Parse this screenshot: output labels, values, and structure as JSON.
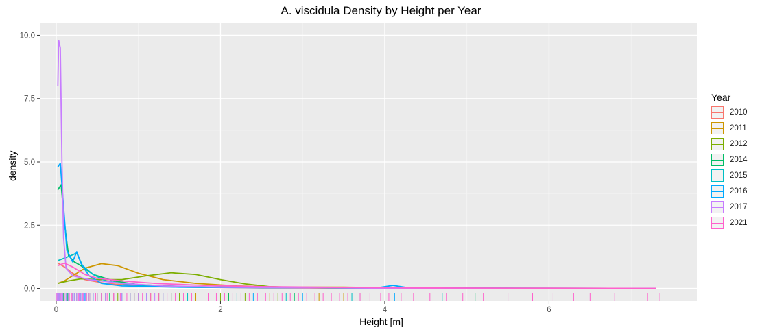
{
  "chart_data": {
    "type": "line",
    "title": "A. viscidula Density by Height per Year",
    "xlabel": "Height [m]",
    "ylabel": "density",
    "xlim": [
      -0.2,
      7.8
    ],
    "ylim": [
      -0.5,
      10.5
    ],
    "x_ticks": [
      0,
      2,
      4,
      6
    ],
    "y_ticks": [
      0.0,
      2.5,
      5.0,
      7.5,
      10.0
    ],
    "y_tick_labels": [
      "0.0",
      "2.5",
      "5.0",
      "7.5",
      "10.0"
    ],
    "grid": true,
    "legend": {
      "title": "Year",
      "placement": "right"
    },
    "series": [
      {
        "name": "2010",
        "color": "#F8766D",
        "points": [
          [
            0.02,
            1.0
          ],
          [
            0.1,
            0.85
          ],
          [
            0.2,
            0.6
          ],
          [
            0.35,
            0.35
          ],
          [
            0.6,
            0.2
          ],
          [
            1.0,
            0.1
          ],
          [
            1.6,
            0.05
          ],
          [
            2.5,
            0.02
          ],
          [
            4.0,
            0.01
          ],
          [
            7.3,
            0.0
          ]
        ]
      },
      {
        "name": "2011",
        "color": "#CD9600",
        "points": [
          [
            0.02,
            0.2
          ],
          [
            0.1,
            0.3
          ],
          [
            0.2,
            0.5
          ],
          [
            0.35,
            0.8
          ],
          [
            0.55,
            0.98
          ],
          [
            0.75,
            0.9
          ],
          [
            1.0,
            0.6
          ],
          [
            1.3,
            0.35
          ],
          [
            1.7,
            0.2
          ],
          [
            2.2,
            0.1
          ],
          [
            2.8,
            0.05
          ],
          [
            3.5,
            0.05
          ],
          [
            4.0,
            0.03
          ],
          [
            5.0,
            0.01
          ],
          [
            7.3,
            0.0
          ]
        ]
      },
      {
        "name": "2012",
        "color": "#7CAE00",
        "points": [
          [
            0.02,
            0.2
          ],
          [
            0.15,
            0.3
          ],
          [
            0.3,
            0.38
          ],
          [
            0.5,
            0.35
          ],
          [
            0.8,
            0.35
          ],
          [
            1.1,
            0.5
          ],
          [
            1.4,
            0.62
          ],
          [
            1.7,
            0.55
          ],
          [
            2.0,
            0.35
          ],
          [
            2.3,
            0.18
          ],
          [
            2.6,
            0.07
          ],
          [
            3.0,
            0.03
          ],
          [
            3.5,
            0.01
          ],
          [
            7.3,
            0.0
          ]
        ]
      },
      {
        "name": "2014",
        "color": "#00BE67",
        "points": [
          [
            0.02,
            3.9
          ],
          [
            0.06,
            4.1
          ],
          [
            0.1,
            2.6
          ],
          [
            0.15,
            1.3
          ],
          [
            0.22,
            1.05
          ],
          [
            0.3,
            0.9
          ],
          [
            0.45,
            0.55
          ],
          [
            0.7,
            0.3
          ],
          [
            1.0,
            0.15
          ],
          [
            1.5,
            0.08
          ],
          [
            2.0,
            0.05
          ],
          [
            3.0,
            0.03
          ],
          [
            4.0,
            0.01
          ],
          [
            7.3,
            0.0
          ]
        ]
      },
      {
        "name": "2015",
        "color": "#00BFC4",
        "points": [
          [
            0.02,
            1.1
          ],
          [
            0.1,
            1.2
          ],
          [
            0.18,
            1.3
          ],
          [
            0.25,
            1.4
          ],
          [
            0.32,
            0.9
          ],
          [
            0.45,
            0.55
          ],
          [
            0.6,
            0.3
          ],
          [
            0.9,
            0.15
          ],
          [
            1.3,
            0.08
          ],
          [
            2.0,
            0.05
          ],
          [
            3.0,
            0.03
          ],
          [
            4.0,
            0.01
          ],
          [
            7.3,
            0.0
          ]
        ]
      },
      {
        "name": "2016",
        "color": "#00A9FF",
        "points": [
          [
            0.02,
            4.8
          ],
          [
            0.05,
            4.95
          ],
          [
            0.09,
            3.2
          ],
          [
            0.13,
            1.5
          ],
          [
            0.2,
            1.05
          ],
          [
            0.25,
            1.45
          ],
          [
            0.3,
            1.0
          ],
          [
            0.4,
            0.5
          ],
          [
            0.55,
            0.2
          ],
          [
            0.8,
            0.1
          ],
          [
            1.5,
            0.05
          ],
          [
            2.5,
            0.03
          ],
          [
            3.9,
            0.02
          ],
          [
            4.1,
            0.12
          ],
          [
            4.3,
            0.02
          ],
          [
            7.3,
            0.0
          ]
        ]
      },
      {
        "name": "2017",
        "color": "#C77CFF",
        "points": [
          [
            0.02,
            8.0
          ],
          [
            0.03,
            9.8
          ],
          [
            0.05,
            9.5
          ],
          [
            0.07,
            5.0
          ],
          [
            0.09,
            2.0
          ],
          [
            0.12,
            0.8
          ],
          [
            0.2,
            0.5
          ],
          [
            0.4,
            0.35
          ],
          [
            0.8,
            0.2
          ],
          [
            1.3,
            0.1
          ],
          [
            2.0,
            0.05
          ],
          [
            3.0,
            0.03
          ],
          [
            4.0,
            0.01
          ],
          [
            7.3,
            0.0
          ]
        ]
      },
      {
        "name": "2021",
        "color": "#FF61CC",
        "points": [
          [
            0.02,
            0.9
          ],
          [
            0.1,
            1.0
          ],
          [
            0.2,
            0.85
          ],
          [
            0.35,
            0.55
          ],
          [
            0.5,
            0.4
          ],
          [
            0.8,
            0.3
          ],
          [
            1.2,
            0.2
          ],
          [
            1.8,
            0.12
          ],
          [
            2.5,
            0.07
          ],
          [
            3.5,
            0.04
          ],
          [
            4.5,
            0.02
          ],
          [
            6.0,
            0.01
          ],
          [
            7.3,
            0.0
          ]
        ]
      }
    ],
    "rug": {
      "2017": [
        0.01,
        0.03,
        0.04,
        0.06,
        0.08,
        0.1,
        0.12,
        0.15,
        0.18,
        0.2,
        0.22,
        0.25,
        0.28,
        0.3,
        0.33,
        0.36,
        0.4,
        0.45,
        0.5,
        0.55,
        0.6,
        0.7,
        0.8,
        0.9,
        1.0,
        1.1,
        1.2,
        1.3,
        1.4
      ],
      "2016": [
        0.02,
        0.05,
        0.1,
        0.15,
        0.2,
        0.25,
        0.3,
        0.35,
        0.45,
        0.6,
        0.9,
        1.3,
        1.8,
        2.4,
        3.0,
        4.12
      ],
      "2015": [
        0.03,
        0.12,
        0.22,
        0.3,
        0.42,
        0.55,
        0.8,
        1.1,
        1.6,
        2.2,
        2.8,
        3.6,
        4.7
      ],
      "2014": [
        0.04,
        0.09,
        0.14,
        0.2,
        0.3,
        0.45,
        0.65,
        0.95,
        1.4,
        2.1,
        2.9,
        3.7,
        5.1
      ],
      "2012": [
        0.08,
        0.25,
        0.5,
        0.75,
        1.0,
        1.25,
        1.5,
        1.75,
        2.0,
        2.3,
        2.7
      ],
      "2011": [
        0.2,
        0.4,
        0.55,
        0.7,
        0.9,
        1.15,
        1.4,
        1.7,
        2.1,
        2.6,
        3.2,
        3.5
      ],
      "2010": [
        0.02,
        0.08,
        0.15,
        0.25,
        0.4,
        0.6,
        0.9,
        1.3
      ],
      "2021": [
        0.0,
        0.02,
        0.05,
        0.07,
        0.1,
        0.13,
        0.16,
        0.19,
        0.23,
        0.27,
        0.32,
        0.37,
        0.42,
        0.48,
        0.55,
        0.62,
        0.7,
        0.78,
        0.86,
        0.95,
        1.05,
        1.15,
        1.25,
        1.35,
        1.45,
        1.55,
        1.65,
        1.75,
        1.85,
        1.95,
        2.05,
        2.15,
        2.25,
        2.35,
        2.45,
        2.55,
        2.65,
        2.75,
        2.85,
        2.95,
        3.05,
        3.15,
        3.25,
        3.35,
        3.45,
        3.55,
        3.7,
        3.82,
        3.95,
        4.05,
        4.2,
        4.35,
        4.55,
        4.75,
        4.95,
        5.2,
        5.5,
        5.8,
        6.05,
        6.3,
        6.5,
        6.8,
        7.2,
        7.35
      ]
    }
  }
}
